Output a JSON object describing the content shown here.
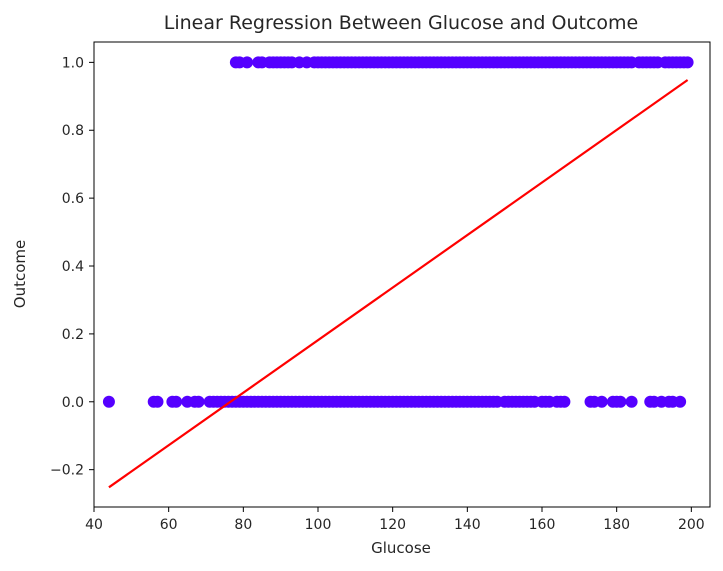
{
  "chart_data": {
    "type": "scatter",
    "title": "Linear Regression Between Glucose and Outcome",
    "xlabel": "Glucose",
    "ylabel": "Outcome",
    "xlim": [
      40,
      205
    ],
    "ylim": [
      -0.31,
      1.06
    ],
    "grid": false,
    "x_ticks": [
      {
        "value": 40,
        "label": "40"
      },
      {
        "value": 60,
        "label": "60"
      },
      {
        "value": 80,
        "label": "80"
      },
      {
        "value": 100,
        "label": "100"
      },
      {
        "value": 120,
        "label": "120"
      },
      {
        "value": 140,
        "label": "140"
      },
      {
        "value": 160,
        "label": "160"
      },
      {
        "value": 180,
        "label": "180"
      },
      {
        "value": 200,
        "label": "200"
      }
    ],
    "y_ticks": [
      {
        "value": -0.2,
        "label": "−0.2"
      },
      {
        "value": 0.0,
        "label": "0.0"
      },
      {
        "value": 0.2,
        "label": "0.2"
      },
      {
        "value": 0.4,
        "label": "0.4"
      },
      {
        "value": 0.6,
        "label": "0.6"
      },
      {
        "value": 0.8,
        "label": "0.8"
      },
      {
        "value": 1.0,
        "label": "1.0"
      }
    ],
    "series": [
      {
        "kind": "scatter",
        "color": "#5500ff",
        "points": [
          [
            44,
            0
          ],
          [
            56,
            0
          ],
          [
            57,
            0
          ],
          [
            61,
            0
          ],
          [
            62,
            0
          ],
          [
            65,
            0
          ],
          [
            67,
            0
          ],
          [
            68,
            0
          ],
          [
            71,
            0
          ],
          [
            72,
            0
          ],
          [
            73,
            0
          ],
          [
            74,
            0
          ],
          [
            75,
            0
          ],
          [
            76,
            0
          ],
          [
            77,
            0
          ],
          [
            78,
            0
          ],
          [
            79,
            0
          ],
          [
            80,
            0
          ],
          [
            81,
            0
          ],
          [
            82,
            0
          ],
          [
            83,
            0
          ],
          [
            84,
            0
          ],
          [
            85,
            0
          ],
          [
            86,
            0
          ],
          [
            87,
            0
          ],
          [
            88,
            0
          ],
          [
            89,
            0
          ],
          [
            90,
            0
          ],
          [
            91,
            0
          ],
          [
            92,
            0
          ],
          [
            93,
            0
          ],
          [
            94,
            0
          ],
          [
            95,
            0
          ],
          [
            96,
            0
          ],
          [
            97,
            0
          ],
          [
            98,
            0
          ],
          [
            99,
            0
          ],
          [
            100,
            0
          ],
          [
            101,
            0
          ],
          [
            102,
            0
          ],
          [
            103,
            0
          ],
          [
            104,
            0
          ],
          [
            105,
            0
          ],
          [
            106,
            0
          ],
          [
            107,
            0
          ],
          [
            108,
            0
          ],
          [
            109,
            0
          ],
          [
            110,
            0
          ],
          [
            111,
            0
          ],
          [
            112,
            0
          ],
          [
            113,
            0
          ],
          [
            114,
            0
          ],
          [
            115,
            0
          ],
          [
            116,
            0
          ],
          [
            117,
            0
          ],
          [
            118,
            0
          ],
          [
            119,
            0
          ],
          [
            120,
            0
          ],
          [
            121,
            0
          ],
          [
            122,
            0
          ],
          [
            123,
            0
          ],
          [
            124,
            0
          ],
          [
            125,
            0
          ],
          [
            126,
            0
          ],
          [
            127,
            0
          ],
          [
            128,
            0
          ],
          [
            129,
            0
          ],
          [
            130,
            0
          ],
          [
            131,
            0
          ],
          [
            132,
            0
          ],
          [
            133,
            0
          ],
          [
            134,
            0
          ],
          [
            135,
            0
          ],
          [
            136,
            0
          ],
          [
            137,
            0
          ],
          [
            138,
            0
          ],
          [
            139,
            0
          ],
          [
            140,
            0
          ],
          [
            141,
            0
          ],
          [
            142,
            0
          ],
          [
            143,
            0
          ],
          [
            144,
            0
          ],
          [
            145,
            0
          ],
          [
            146,
            0
          ],
          [
            147,
            0
          ],
          [
            148,
            0
          ],
          [
            150,
            0
          ],
          [
            151,
            0
          ],
          [
            152,
            0
          ],
          [
            153,
            0
          ],
          [
            154,
            0
          ],
          [
            155,
            0
          ],
          [
            156,
            0
          ],
          [
            157,
            0
          ],
          [
            158,
            0
          ],
          [
            160,
            0
          ],
          [
            161,
            0
          ],
          [
            162,
            0
          ],
          [
            164,
            0
          ],
          [
            165,
            0
          ],
          [
            166,
            0
          ],
          [
            173,
            0
          ],
          [
            174,
            0
          ],
          [
            176,
            0
          ],
          [
            179,
            0
          ],
          [
            180,
            0
          ],
          [
            181,
            0
          ],
          [
            184,
            0
          ],
          [
            189,
            0
          ],
          [
            190,
            0
          ],
          [
            192,
            0
          ],
          [
            194,
            0
          ],
          [
            195,
            0
          ],
          [
            197,
            0
          ],
          [
            78,
            1
          ],
          [
            79,
            1
          ],
          [
            81,
            1
          ],
          [
            84,
            1
          ],
          [
            85,
            1
          ],
          [
            87,
            1
          ],
          [
            88,
            1
          ],
          [
            89,
            1
          ],
          [
            90,
            1
          ],
          [
            91,
            1
          ],
          [
            92,
            1
          ],
          [
            93,
            1
          ],
          [
            95,
            1
          ],
          [
            97,
            1
          ],
          [
            99,
            1
          ],
          [
            100,
            1
          ],
          [
            101,
            1
          ],
          [
            102,
            1
          ],
          [
            103,
            1
          ],
          [
            104,
            1
          ],
          [
            105,
            1
          ],
          [
            106,
            1
          ],
          [
            107,
            1
          ],
          [
            108,
            1
          ],
          [
            109,
            1
          ],
          [
            110,
            1
          ],
          [
            111,
            1
          ],
          [
            112,
            1
          ],
          [
            113,
            1
          ],
          [
            114,
            1
          ],
          [
            115,
            1
          ],
          [
            116,
            1
          ],
          [
            117,
            1
          ],
          [
            118,
            1
          ],
          [
            119,
            1
          ],
          [
            120,
            1
          ],
          [
            121,
            1
          ],
          [
            122,
            1
          ],
          [
            123,
            1
          ],
          [
            124,
            1
          ],
          [
            125,
            1
          ],
          [
            126,
            1
          ],
          [
            127,
            1
          ],
          [
            128,
            1
          ],
          [
            129,
            1
          ],
          [
            130,
            1
          ],
          [
            131,
            1
          ],
          [
            132,
            1
          ],
          [
            133,
            1
          ],
          [
            134,
            1
          ],
          [
            135,
            1
          ],
          [
            136,
            1
          ],
          [
            137,
            1
          ],
          [
            138,
            1
          ],
          [
            139,
            1
          ],
          [
            140,
            1
          ],
          [
            141,
            1
          ],
          [
            142,
            1
          ],
          [
            143,
            1
          ],
          [
            144,
            1
          ],
          [
            145,
            1
          ],
          [
            146,
            1
          ],
          [
            147,
            1
          ],
          [
            148,
            1
          ],
          [
            149,
            1
          ],
          [
            150,
            1
          ],
          [
            151,
            1
          ],
          [
            152,
            1
          ],
          [
            153,
            1
          ],
          [
            154,
            1
          ],
          [
            155,
            1
          ],
          [
            156,
            1
          ],
          [
            157,
            1
          ],
          [
            158,
            1
          ],
          [
            159,
            1
          ],
          [
            160,
            1
          ],
          [
            161,
            1
          ],
          [
            162,
            1
          ],
          [
            163,
            1
          ],
          [
            164,
            1
          ],
          [
            165,
            1
          ],
          [
            166,
            1
          ],
          [
            167,
            1
          ],
          [
            168,
            1
          ],
          [
            169,
            1
          ],
          [
            170,
            1
          ],
          [
            171,
            1
          ],
          [
            172,
            1
          ],
          [
            173,
            1
          ],
          [
            174,
            1
          ],
          [
            175,
            1
          ],
          [
            176,
            1
          ],
          [
            177,
            1
          ],
          [
            178,
            1
          ],
          [
            179,
            1
          ],
          [
            180,
            1
          ],
          [
            181,
            1
          ],
          [
            182,
            1
          ],
          [
            183,
            1
          ],
          [
            184,
            1
          ],
          [
            186,
            1
          ],
          [
            187,
            1
          ],
          [
            188,
            1
          ],
          [
            189,
            1
          ],
          [
            190,
            1
          ],
          [
            191,
            1
          ],
          [
            193,
            1
          ],
          [
            194,
            1
          ],
          [
            195,
            1
          ],
          [
            196,
            1
          ],
          [
            197,
            1
          ],
          [
            198,
            1
          ],
          [
            199,
            1
          ]
        ]
      },
      {
        "kind": "line",
        "color": "#ff0000",
        "points": [
          [
            44,
            -0.252
          ],
          [
            199,
            0.948
          ]
        ]
      }
    ]
  }
}
